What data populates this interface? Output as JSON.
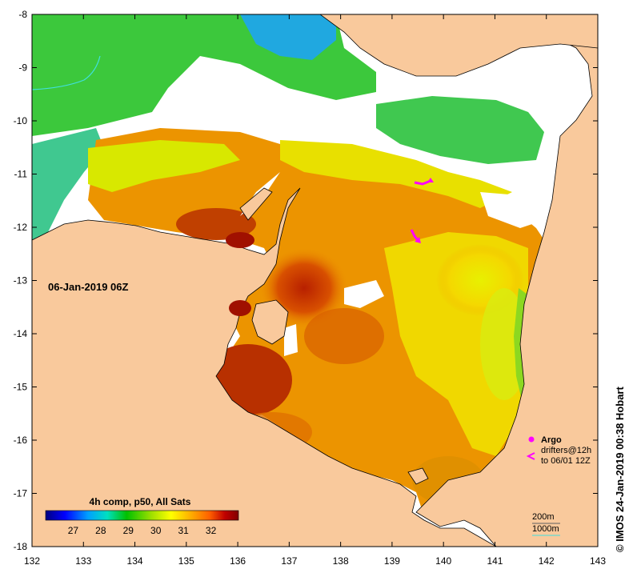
{
  "map": {
    "date_label": "06-Jan-2019 06Z",
    "x_ticks": [
      "132",
      "133",
      "134",
      "135",
      "136",
      "137",
      "138",
      "139",
      "140",
      "141",
      "142",
      "143"
    ],
    "y_ticks": [
      "-8",
      "-9",
      "-10",
      "-11",
      "-12",
      "-13",
      "-14",
      "-15",
      "-16",
      "-17",
      "-18"
    ],
    "lon_range": [
      132,
      143
    ],
    "lat_range": [
      -18,
      -8
    ],
    "land_color": "#f9c99c",
    "cloud_color": "#ffffff",
    "colorbar": {
      "title": "4h comp, p50, All Sats",
      "ticks": [
        "27",
        "28",
        "29",
        "30",
        "31",
        "32"
      ],
      "range": [
        26,
        33
      ],
      "colors": [
        "#000080",
        "#0000ff",
        "#00a0ff",
        "#00e0c0",
        "#00c000",
        "#a0e000",
        "#ffff00",
        "#ffb000",
        "#ff6000",
        "#c00000",
        "#800000"
      ]
    },
    "legend": {
      "argo_label": "Argo",
      "drifters_label": "drifters@12h",
      "drifters_to": "to 06/01 12Z",
      "contour_200": "200m",
      "contour_1000": "1000m"
    },
    "credit": "© IMOS 24-Jan-2019 00:38 Hobart"
  }
}
